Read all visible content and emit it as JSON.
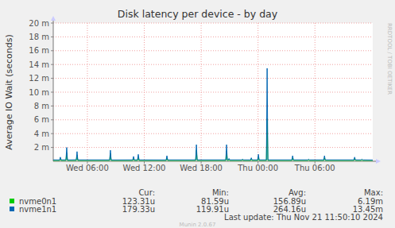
{
  "chart_data": {
    "type": "line",
    "title": "Disk latency per device - by day",
    "y_label": "Average IO Wait (seconds)",
    "watermark": "RRDTOOL / TOBI OETIKER",
    "last_update": "Last update: Thu Nov 21 11:50:10 2024",
    "footer": "Munin 2.0.67",
    "grid": true,
    "xlim": [
      2.4,
      36.1
    ],
    "xticks": [
      {
        "value": 6,
        "label": "Wed 06:00"
      },
      {
        "value": 12,
        "label": "Wed 12:00"
      },
      {
        "value": 18,
        "label": "Wed 18:00"
      },
      {
        "value": 24,
        "label": "Thu 00:00"
      },
      {
        "value": 30,
        "label": "Thu 06:00"
      }
    ],
    "ylim": [
      0,
      0.02
    ],
    "yticks": [
      {
        "value": 0.002,
        "label": "2 m"
      },
      {
        "value": 0.004,
        "label": "4 m"
      },
      {
        "value": 0.006,
        "label": "6 m"
      },
      {
        "value": 0.008,
        "label": "8 m"
      },
      {
        "value": 0.01,
        "label": "10 m"
      },
      {
        "value": 0.012,
        "label": "12 m"
      },
      {
        "value": 0.014,
        "label": "14 m"
      },
      {
        "value": 0.016,
        "label": "16 m"
      },
      {
        "value": 0.018,
        "label": "18 m"
      },
      {
        "value": 0.02,
        "label": "20 m"
      }
    ],
    "x": [
      2.4,
      3.07,
      3.15,
      3.23,
      3.74,
      3.82,
      3.9,
      4.83,
      4.91,
      4.99,
      8.35,
      8.43,
      8.51,
      10.79,
      10.87,
      10.95,
      11.29,
      11.37,
      11.45,
      14.31,
      14.39,
      14.47,
      17.42,
      17.5,
      17.58,
      20.6,
      20.68,
      20.76,
      20.86,
      20.94,
      21.02,
      22.28,
      22.36,
      22.44,
      23.21,
      23.29,
      23.37,
      23.96,
      24.04,
      24.12,
      24.88,
      24.96,
      25.04,
      27.57,
      27.65,
      27.73,
      29.25,
      29.33,
      29.41,
      30.93,
      31.01,
      31.09,
      34.11,
      34.19,
      34.27,
      34.87,
      34.95,
      35.03,
      36.1
    ],
    "series": [
      {
        "name": "nvme0n1",
        "color": "#00cc00",
        "values": [
          0.00012,
          0.00012,
          0.0003,
          0.00012,
          0.00012,
          0.0012,
          0.00012,
          0.00012,
          0.0009,
          0.00012,
          0.00012,
          0.0011,
          0.00012,
          0.00012,
          0.0004,
          0.00012,
          0.00012,
          0.0006,
          0.00012,
          0.00012,
          0.0005,
          0.00012,
          0.00012,
          0.0016,
          0.00012,
          0.00012,
          0.0015,
          0.00012,
          0.00012,
          0.0002,
          0.00012,
          0.00012,
          0.0002,
          0.00012,
          0.00012,
          0.0003,
          0.00012,
          0.00012,
          0.0006,
          0.00012,
          0.00012,
          0.00619,
          0.00012,
          0.00012,
          0.0005,
          0.00012,
          0.00012,
          0.0002,
          0.00012,
          0.00012,
          0.0005,
          0.00012,
          0.00012,
          0.0004,
          0.00012,
          0.00012,
          0.0002,
          0.00012,
          0.00012
        ]
      },
      {
        "name": "nvme1n1",
        "color": "#0066b3",
        "values": [
          0.0002,
          0.00019,
          0.0006,
          0.0002,
          0.0002,
          0.002,
          0.00019,
          0.00021,
          0.0014,
          0.0002,
          0.0002,
          0.0016,
          0.00019,
          0.0002,
          0.0007,
          0.0002,
          0.0002,
          0.001,
          0.0002,
          0.00019,
          0.0008,
          0.0002,
          0.0002,
          0.0024,
          0.0002,
          0.0002,
          0.0024,
          0.0002,
          0.0002,
          0.0004,
          0.0002,
          0.0002,
          0.0003,
          0.0002,
          0.0002,
          0.0005,
          0.0002,
          0.0002,
          0.001,
          0.0002,
          0.0002,
          0.01345,
          0.0002,
          0.0002,
          0.0008,
          0.0002,
          0.0002,
          0.0003,
          0.0002,
          0.0002,
          0.0008,
          0.0002,
          0.0002,
          0.0006,
          0.0002,
          0.0002,
          0.0003,
          0.0002,
          0.00018
        ]
      }
    ],
    "stats_headers": [
      "Cur:",
      "Min:",
      "Avg:",
      "Max:"
    ],
    "stats": [
      [
        "123.31u",
        "81.59u",
        "156.89u",
        "6.19m"
      ],
      [
        "179.33u",
        "119.91u",
        "264.16u",
        "13.45m"
      ]
    ]
  }
}
